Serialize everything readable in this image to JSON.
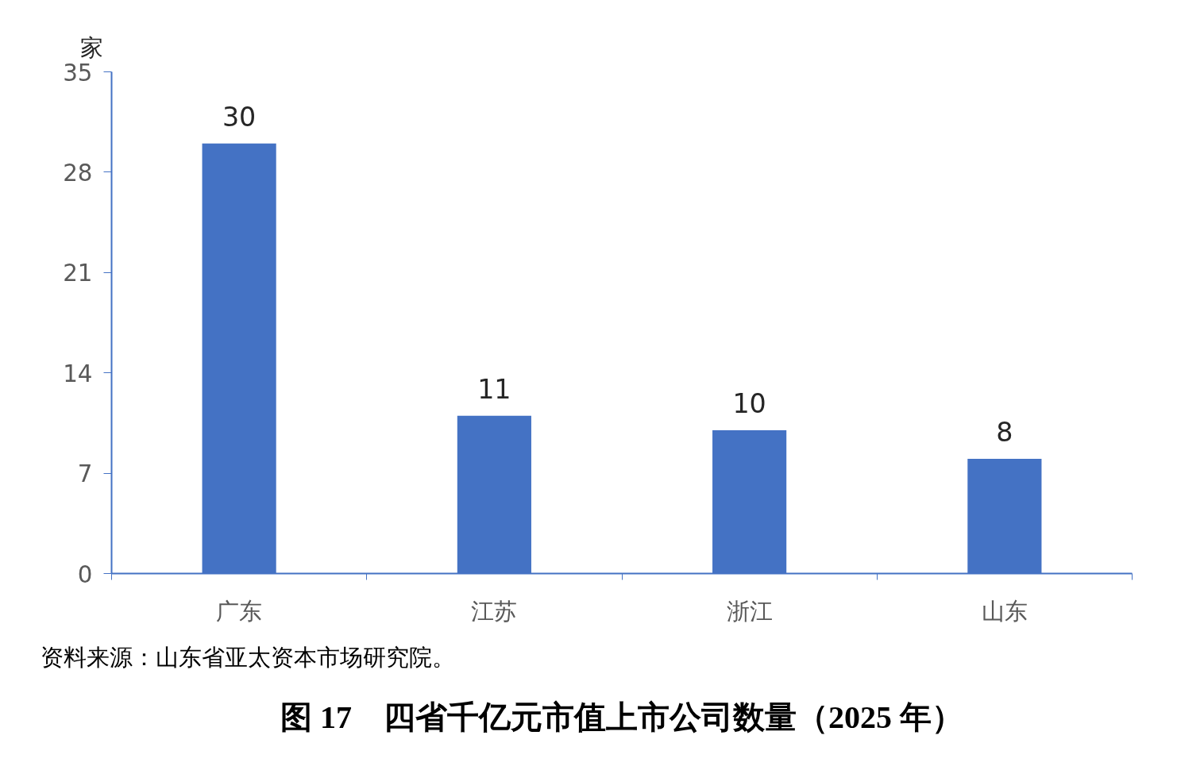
{
  "chart_data": {
    "type": "bar",
    "title": "图 17　四省千亿元市值上市公司数量（2025 年）",
    "ylabel": "家",
    "categories": [
      "广东",
      "江苏",
      "浙江",
      "山东"
    ],
    "values": [
      30,
      11,
      10,
      8
    ],
    "color": "#4472c4",
    "ylim": [
      0,
      35
    ],
    "yticks": [
      0,
      7,
      14,
      21,
      28,
      35
    ],
    "grid": false,
    "data_labels": true,
    "annotations": [
      "资料来源：山东省亚太资本市场研究院。"
    ]
  }
}
